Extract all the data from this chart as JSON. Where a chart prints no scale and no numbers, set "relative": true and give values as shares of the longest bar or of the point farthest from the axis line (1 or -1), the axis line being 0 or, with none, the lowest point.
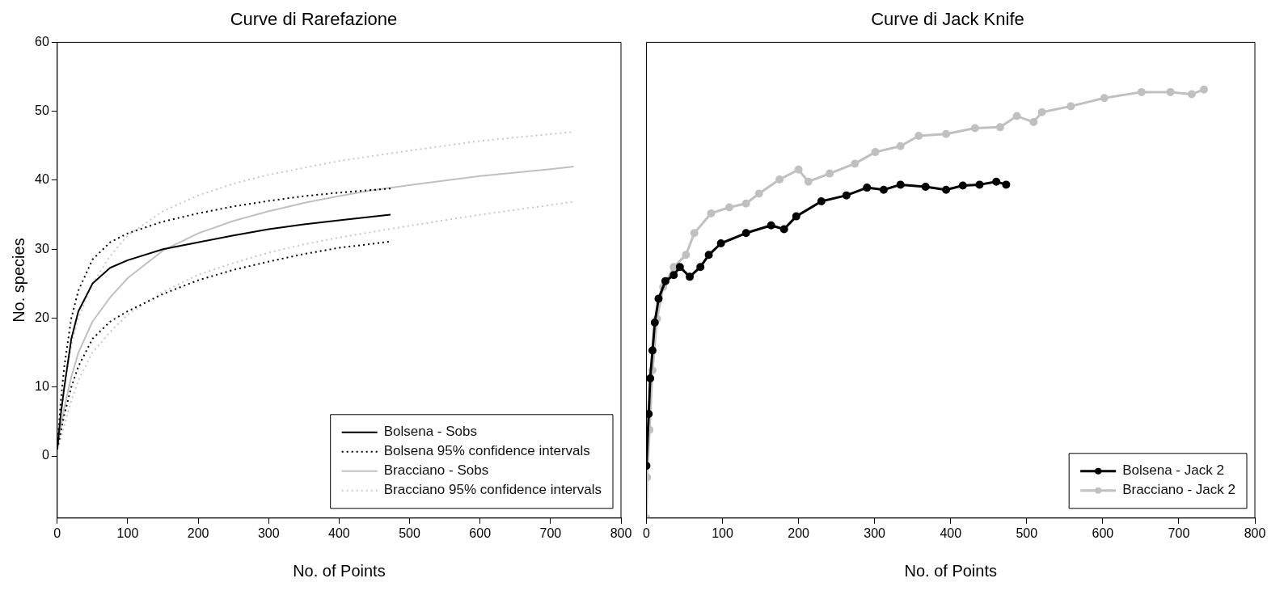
{
  "chart_data": [
    {
      "type": "line",
      "title": "Curve di Rarefazione",
      "xlabel": "No. of Points",
      "ylabel": "No. species",
      "xlim": [
        0,
        800
      ],
      "xticks": [
        0,
        100,
        200,
        300,
        400,
        500,
        600,
        700,
        800
      ],
      "ylim": [
        -9,
        60
      ],
      "yticks": [
        0,
        10,
        20,
        30,
        40,
        50,
        60
      ],
      "grid": false,
      "legend": "bottom right",
      "marker": "none",
      "series": [
        {
          "name": "Bolsena - Sobs",
          "color": "#000000",
          "line_style": "solid",
          "x": [
            0,
            5,
            10,
            20,
            30,
            50,
            75,
            100,
            150,
            200,
            250,
            300,
            350,
            400,
            473
          ],
          "values": [
            1,
            6,
            10,
            17,
            21,
            25,
            27.3,
            28.4,
            30,
            31,
            32,
            32.9,
            33.6,
            34.2,
            35
          ]
        },
        {
          "name": "Bolsena 95% confidence intervals",
          "color": "#000000",
          "line_style": "dotted",
          "x": [
            0,
            5,
            10,
            20,
            30,
            50,
            75,
            100,
            150,
            200,
            250,
            300,
            350,
            400,
            473
          ],
          "values": [
            1,
            8,
            13,
            20,
            24,
            28.5,
            31,
            32.3,
            34,
            35.2,
            36.2,
            37,
            37.7,
            38.2,
            38.8
          ]
        },
        {
          "color": "#000000",
          "line_style": "dotted",
          "x": [
            0,
            5,
            10,
            20,
            30,
            50,
            75,
            100,
            150,
            200,
            250,
            300,
            350,
            400,
            473
          ],
          "values": [
            1,
            3.5,
            6,
            10,
            13,
            17,
            19.5,
            21,
            23.5,
            25.5,
            27,
            28.2,
            29.3,
            30.2,
            31.1
          ]
        },
        {
          "name": "Bracciano - Sobs",
          "color": "#c0c0c0",
          "line_style": "solid",
          "x": [
            0,
            5,
            10,
            20,
            30,
            50,
            75,
            100,
            150,
            200,
            250,
            300,
            350,
            400,
            450,
            500,
            600,
            700,
            733
          ],
          "values": [
            1,
            4,
            7,
            11.5,
            15,
            19.5,
            23,
            25.8,
            29.8,
            32.3,
            34.1,
            35.5,
            36.7,
            37.7,
            38.6,
            39.3,
            40.6,
            41.6,
            42
          ]
        },
        {
          "name": "Bracciano 95% confidence intervals",
          "color": "#c8c8c8",
          "line_style": "dotted",
          "x": [
            0,
            5,
            10,
            20,
            30,
            50,
            75,
            100,
            150,
            200,
            250,
            300,
            350,
            400,
            500,
            600,
            700,
            733
          ],
          "values": [
            1,
            6,
            10,
            16,
            20,
            25,
            29,
            32,
            35.5,
            37.8,
            39.5,
            40.8,
            41.8,
            42.8,
            44.3,
            45.7,
            46.7,
            47
          ]
        },
        {
          "color": "#c8c8c8",
          "line_style": "dotted",
          "x": [
            0,
            5,
            10,
            20,
            30,
            50,
            75,
            100,
            150,
            200,
            250,
            300,
            350,
            400,
            500,
            600,
            700,
            733
          ],
          "values": [
            1,
            2.5,
            4.5,
            8,
            11,
            15,
            18,
            20.5,
            23.8,
            26.3,
            28,
            29.5,
            30.7,
            31.7,
            33.4,
            35,
            36.4,
            36.9
          ]
        }
      ]
    },
    {
      "type": "line",
      "title": "Curve di Jack Knife",
      "xlabel": "No. of Points",
      "xlim": [
        0,
        800
      ],
      "xticks": [
        0,
        100,
        200,
        300,
        400,
        500,
        600,
        700,
        800
      ],
      "relative": true,
      "tick_labels": "x",
      "grid": false,
      "legend": "bottom right",
      "marker": "circle",
      "series": [
        {
          "name": "Bolsena - Jack 2",
          "color": "#000000",
          "x": [
            0,
            3,
            5,
            8,
            11,
            16,
            25,
            36,
            44,
            57,
            71,
            82,
            98,
            131,
            164,
            181,
            197,
            230,
            263,
            290,
            312,
            334,
            367,
            394,
            416,
            438,
            460,
            473
          ],
          "values": [
            0.122,
            0.243,
            0.326,
            0.391,
            0.456,
            0.512,
            0.553,
            0.567,
            0.586,
            0.563,
            0.586,
            0.614,
            0.641,
            0.665,
            0.683,
            0.674,
            0.704,
            0.739,
            0.753,
            0.771,
            0.766,
            0.778,
            0.773,
            0.766,
            0.776,
            0.778,
            0.785,
            0.778
          ]
        },
        {
          "name": "Bracciano - Jack 2",
          "color": "#c0c0c0",
          "x": [
            0,
            1,
            4,
            8,
            14,
            22,
            36,
            52,
            63,
            85,
            109,
            131,
            148,
            175,
            200,
            213,
            241,
            274,
            301,
            334,
            358,
            394,
            432,
            465,
            487,
            509,
            520,
            558,
            602,
            651,
            689,
            717,
            733
          ],
          "values": [
            0,
            0.095,
            0.206,
            0.345,
            0.465,
            0.539,
            0.586,
            0.614,
            0.665,
            0.711,
            0.725,
            0.734,
            0.757,
            0.79,
            0.813,
            0.785,
            0.804,
            0.827,
            0.854,
            0.868,
            0.892,
            0.896,
            0.91,
            0.912,
            0.938,
            0.924,
            0.947,
            0.961,
            0.98,
            0.994,
            0.994,
            0.989,
            1
          ]
        }
      ]
    }
  ]
}
